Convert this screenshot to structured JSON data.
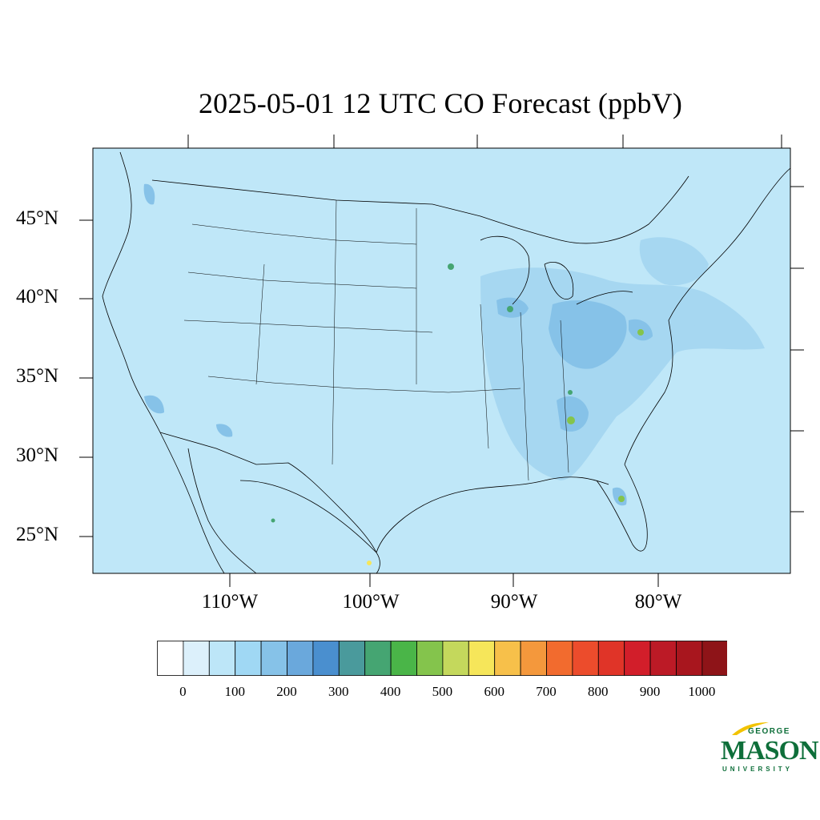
{
  "title": "2025-05-01 12 UTC CO Forecast (ppbV)",
  "latitude_labels": [
    "45°N",
    "40°N",
    "35°N",
    "30°N",
    "25°N"
  ],
  "longitude_labels": [
    "110°W",
    "100°W",
    "90°W",
    "80°W"
  ],
  "colorbar": {
    "tick_labels": [
      "0",
      "100",
      "200",
      "300",
      "400",
      "500",
      "600",
      "700",
      "800",
      "900",
      "1000"
    ],
    "colors": [
      "#ffffff",
      "#dcf0fb",
      "#bde6f8",
      "#a0d8f4",
      "#86c2e8",
      "#6aa8dc",
      "#4a8fcf",
      "#4a9a9c",
      "#45a572",
      "#4ab548",
      "#84c44c",
      "#c4d85c",
      "#f6e65a",
      "#f7c04a",
      "#f4983c",
      "#f26b2e",
      "#ec4c2c",
      "#e03428",
      "#d21e2a",
      "#bc1a26",
      "#a8161e",
      "#8e1418"
    ]
  },
  "map_colors": {
    "background_fill": "#bfe7f8",
    "enhanced_fill": "#a6d7f1",
    "high_fill": "#86c2e8",
    "hotspot_fill": "#45a572",
    "peak_fill": "#84c44c"
  },
  "logo": {
    "line1": "GEORGE",
    "line2": "MASON",
    "line3": "UNIVERSITY"
  }
}
